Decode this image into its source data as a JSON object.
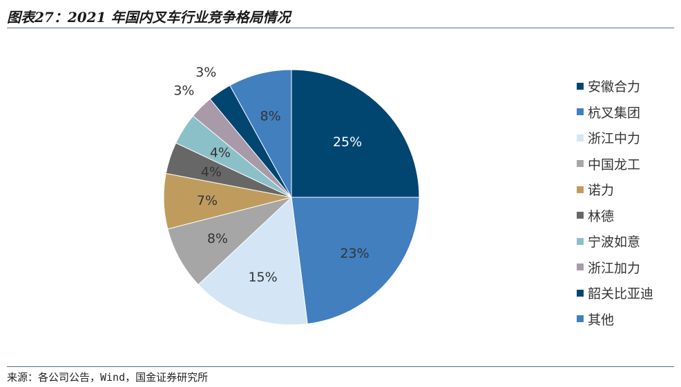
{
  "figure": {
    "title": "图表27：2021 年国内叉车行业竞争格局情况",
    "source": "来源：各公司公告，Wind，国金证券研究所"
  },
  "chart_data": {
    "type": "pie",
    "title": "",
    "start_angle_deg": 0,
    "direction": "clockwise",
    "slices": [
      {
        "label": "安徽合力",
        "value": 25,
        "value_label": "25%",
        "color": "#004670",
        "label_color": "#ffffff"
      },
      {
        "label": "杭叉集团",
        "value": 23,
        "value_label": "23%",
        "color": "#417fbf",
        "label_color": "#333333"
      },
      {
        "label": "浙江中力",
        "value": 15,
        "value_label": "15%",
        "color": "#d4e5f5",
        "label_color": "#333333"
      },
      {
        "label": "中国龙工",
        "value": 8,
        "value_label": "8%",
        "color": "#a6a6a6",
        "label_color": "#333333"
      },
      {
        "label": "诺力",
        "value": 7,
        "value_label": "7%",
        "color": "#bf9c5e",
        "label_color": "#333333"
      },
      {
        "label": "林德",
        "value": 4,
        "value_label": "4%",
        "color": "#676767",
        "label_color": "#333333"
      },
      {
        "label": "宁波如意",
        "value": 4,
        "value_label": "4%",
        "color": "#8cc0c8",
        "label_color": "#333333"
      },
      {
        "label": "浙江加力",
        "value": 3,
        "value_label": "3%",
        "color": "#a89aa8",
        "label_color": "#333333"
      },
      {
        "label": "韶关比亚迪",
        "value": 3,
        "value_label": "3%",
        "color": "#004670",
        "label_color": "#333333"
      },
      {
        "label": "其他",
        "value": 8,
        "value_label": "8%",
        "color": "#417fbf",
        "label_color": "#333333"
      }
    ],
    "legend_position": "right"
  }
}
